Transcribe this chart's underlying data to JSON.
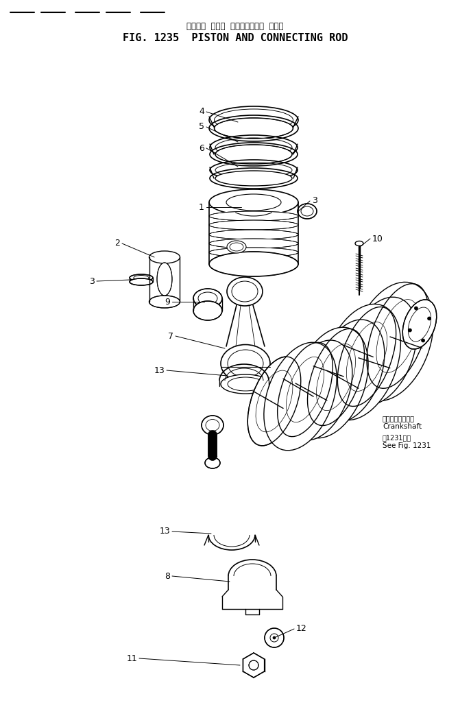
{
  "title_jp": "ピストン  および  コネクティング  ロッド",
  "title_en": "FIG. 1235  PISTON AND CONNECTING ROD",
  "crankshaft_jp": "クランクシャフト",
  "crankshaft_en": "Crankshaft",
  "see_fig_jp": "図1231参照",
  "see_fig_en": "See Fig. 1231",
  "bg": "#ffffff",
  "lc": "#000000",
  "fig_w": 6.87,
  "fig_h": 10.28,
  "dpi": 100
}
